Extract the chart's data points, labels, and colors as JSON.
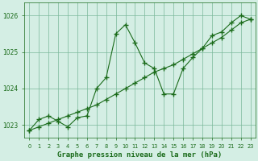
{
  "line1_x": [
    0,
    1,
    2,
    3,
    4,
    5,
    6,
    7,
    8,
    9,
    10,
    11,
    12,
    13,
    14,
    15,
    16,
    17,
    18,
    19,
    20,
    21,
    22,
    23
  ],
  "line1_y": [
    1022.85,
    1023.15,
    1023.25,
    1023.1,
    1022.95,
    1023.2,
    1023.25,
    1024.0,
    1024.3,
    1025.5,
    1025.75,
    1025.25,
    1024.7,
    1024.55,
    1023.85,
    1023.85,
    1024.55,
    1024.85,
    1025.1,
    1025.45,
    1025.55,
    1025.8,
    1026.0,
    1025.9
  ],
  "line2_x": [
    0,
    1,
    2,
    3,
    4,
    5,
    6,
    7,
    8,
    9,
    10,
    11,
    12,
    13,
    14,
    15,
    16,
    17,
    18,
    19,
    20,
    21,
    22,
    23
  ],
  "line2_y": [
    1022.85,
    1022.95,
    1023.05,
    1023.15,
    1023.25,
    1023.35,
    1023.45,
    1023.55,
    1023.7,
    1023.85,
    1024.0,
    1024.15,
    1024.3,
    1024.45,
    1024.55,
    1024.65,
    1024.8,
    1024.95,
    1025.1,
    1025.25,
    1025.4,
    1025.6,
    1025.8,
    1025.9
  ],
  "line_color": "#1a6b1a",
  "marker": "+",
  "bg_color": "#d4eee4",
  "grid_color": "#7ab89a",
  "xlabel": "Graphe pression niveau de la mer (hPa)",
  "xlabel_color": "#1a6b1a",
  "tick_color": "#1a6b1a",
  "ylim": [
    1022.65,
    1026.35
  ],
  "xlim": [
    -0.5,
    23.5
  ],
  "yticks": [
    1023,
    1024,
    1025,
    1026
  ],
  "xticks": [
    0,
    1,
    2,
    3,
    4,
    5,
    6,
    7,
    8,
    9,
    10,
    11,
    12,
    13,
    14,
    15,
    16,
    17,
    18,
    19,
    20,
    21,
    22,
    23
  ]
}
